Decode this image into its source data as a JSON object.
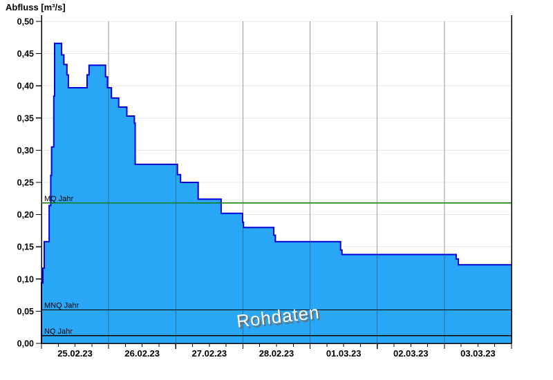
{
  "colors": {
    "area_fill": "#2AA6F7",
    "area_stroke": "#0000D8",
    "h_grid": "#E9E9E9",
    "v_grid": "rgba(45,60,78,0.5)",
    "axis": "#000000",
    "mq_green": "#007A00",
    "ref_black": "#000000",
    "watermark_fill": "#FFFFFF",
    "watermark_shadow": "#6A6A6A",
    "text": "#000000"
  },
  "chart_data": {
    "type": "area",
    "title": "Abfluss [m³/s]",
    "watermark": "Rohdaten",
    "legend": "none",
    "grid": "on",
    "x_axis": {
      "kind": "time-days",
      "start": "25.02.23 00:00",
      "end": "04.03.23 00:00",
      "total_hours": 168,
      "day_labels": [
        "25.02.23",
        "26.02.23",
        "27.02.23",
        "28.02.23",
        "01.03.23",
        "02.03.23",
        "03.03.23"
      ],
      "minor_tick_hours": 6
    },
    "y_axis": {
      "label": "Abfluss [m³/s]",
      "min": 0.0,
      "max": 0.5,
      "tick_step": 0.05,
      "tick_labels": [
        "0,00",
        "0,05",
        "0,10",
        "0,15",
        "0,20",
        "0,25",
        "0,30",
        "0,35",
        "0,40",
        "0,45",
        "0,50"
      ]
    },
    "series": [
      {
        "name": "Abfluss Rohdaten",
        "step": true,
        "unit": "m³/s",
        "points_t_hours_value": [
          [
            0.0,
            0.094
          ],
          [
            0.5,
            0.117
          ],
          [
            1.0,
            0.158
          ],
          [
            2.75,
            0.214
          ],
          [
            3.3,
            0.261
          ],
          [
            3.6,
            0.305
          ],
          [
            4.4,
            0.384
          ],
          [
            4.7,
            0.466
          ],
          [
            7.2,
            0.448
          ],
          [
            8.0,
            0.433
          ],
          [
            9.1,
            0.417
          ],
          [
            9.6,
            0.397
          ],
          [
            16.3,
            0.417
          ],
          [
            17.0,
            0.432
          ],
          [
            22.9,
            0.414
          ],
          [
            23.6,
            0.397
          ],
          [
            25.0,
            0.381
          ],
          [
            27.6,
            0.367
          ],
          [
            30.5,
            0.353
          ],
          [
            33.2,
            0.342
          ],
          [
            33.5,
            0.278
          ],
          [
            48.6,
            0.262
          ],
          [
            49.7,
            0.25
          ],
          [
            56.0,
            0.224
          ],
          [
            64.2,
            0.202
          ],
          [
            71.9,
            0.188
          ],
          [
            72.2,
            0.18
          ],
          [
            83.0,
            0.168
          ],
          [
            83.6,
            0.158
          ],
          [
            106.9,
            0.145
          ],
          [
            107.4,
            0.138
          ],
          [
            148.2,
            0.131
          ],
          [
            149.0,
            0.122
          ]
        ]
      }
    ],
    "reference_lines": [
      {
        "label": "MQ Jahr",
        "value": 0.218,
        "color": "#007A00"
      },
      {
        "label": "MNQ Jahr",
        "value": 0.052,
        "color": "#000000"
      },
      {
        "label": "NQ Jahr",
        "value": 0.012,
        "color": "#000000"
      }
    ]
  }
}
